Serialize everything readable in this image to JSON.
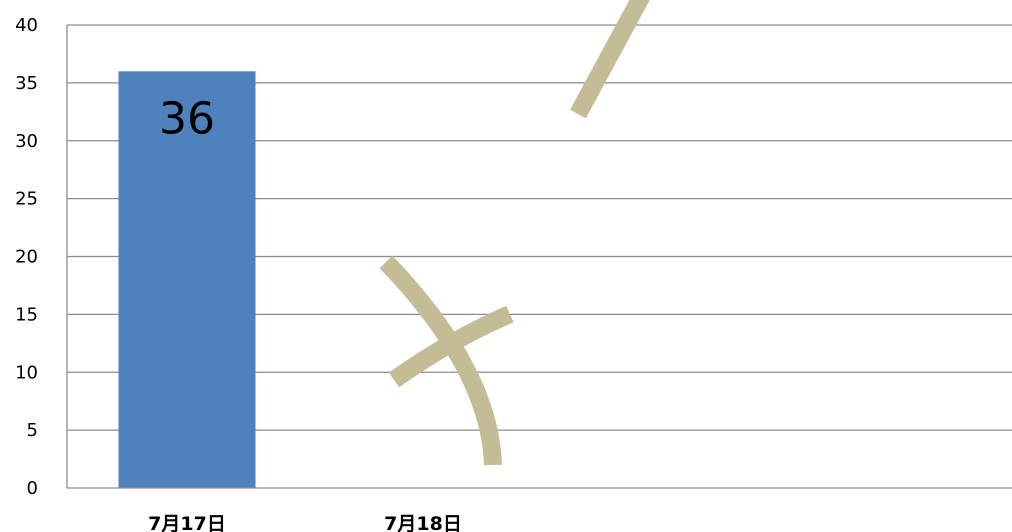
{
  "chart_data": {
    "type": "bar",
    "categories": [
      "7月17日",
      "7月18日"
    ],
    "values": [
      36,
      null
    ],
    "data_labels": [
      "36",
      ""
    ],
    "ylim": [
      0,
      40
    ],
    "yticks": [
      0,
      5,
      10,
      15,
      20,
      25,
      30,
      35,
      40
    ],
    "grid": true,
    "legend": "none",
    "colors": {
      "bar": "#4f81bd",
      "grid": "#8c8c8c",
      "scribble": "#c4bc96"
    }
  }
}
